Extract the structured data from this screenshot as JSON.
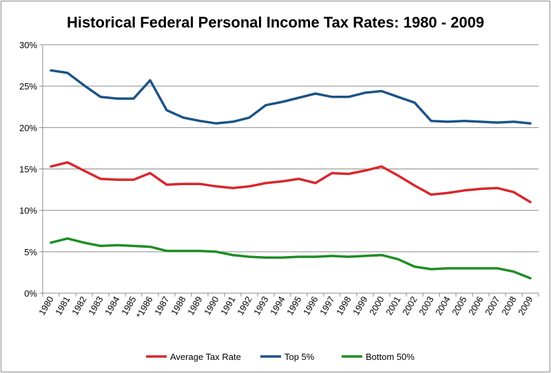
{
  "chart_data": {
    "type": "line",
    "title": "Historical Federal Personal Income Tax Rates: 1980 - 2009",
    "xlabel": "",
    "ylabel": "",
    "categories": [
      "1980",
      "1981",
      "1982",
      "1983",
      "1984",
      "1985",
      "*1986",
      "1987",
      "1988",
      "1989",
      "1990",
      "1991",
      "1992",
      "1993",
      "1994",
      "1995",
      "1996",
      "1997",
      "1998",
      "1999",
      "2000",
      "2001",
      "2002",
      "2003",
      "2004",
      "2005",
      "2006",
      "2007",
      "2008",
      "2009"
    ],
    "ylim": [
      0,
      30
    ],
    "yticks": [
      0,
      5,
      10,
      15,
      20,
      25,
      30
    ],
    "ytick_labels": [
      "0%",
      "5%",
      "10%",
      "15%",
      "20%",
      "25%",
      "30%"
    ],
    "grid": "horizontal",
    "legend_position": "bottom",
    "series": [
      {
        "name": "Average Tax Rate",
        "color": "#d9262c",
        "values": [
          15.3,
          15.8,
          14.8,
          13.8,
          13.7,
          13.7,
          14.5,
          13.1,
          13.2,
          13.2,
          12.9,
          12.7,
          12.9,
          13.3,
          13.5,
          13.8,
          13.3,
          14.5,
          14.4,
          14.8,
          15.3,
          14.2,
          13.0,
          11.9,
          12.1,
          12.4,
          12.6,
          12.7,
          12.2,
          11.0
        ]
      },
      {
        "name": "Top 5%",
        "color": "#1c5387",
        "values": [
          26.9,
          26.6,
          25.1,
          23.7,
          23.5,
          23.5,
          25.7,
          22.1,
          21.2,
          20.8,
          20.5,
          20.7,
          21.2,
          22.7,
          23.1,
          23.6,
          24.1,
          23.7,
          23.7,
          24.2,
          24.4,
          23.7,
          23.0,
          20.8,
          20.7,
          20.8,
          20.7,
          20.6,
          20.7,
          20.5
        ]
      },
      {
        "name": "Bottom 50%",
        "color": "#1d8e22",
        "values": [
          6.1,
          6.6,
          6.1,
          5.7,
          5.8,
          5.7,
          5.6,
          5.1,
          5.1,
          5.1,
          5.0,
          4.6,
          4.4,
          4.3,
          4.3,
          4.4,
          4.4,
          4.5,
          4.4,
          4.5,
          4.6,
          4.1,
          3.2,
          2.9,
          3.0,
          3.0,
          3.0,
          3.0,
          2.6,
          1.8
        ]
      }
    ]
  }
}
